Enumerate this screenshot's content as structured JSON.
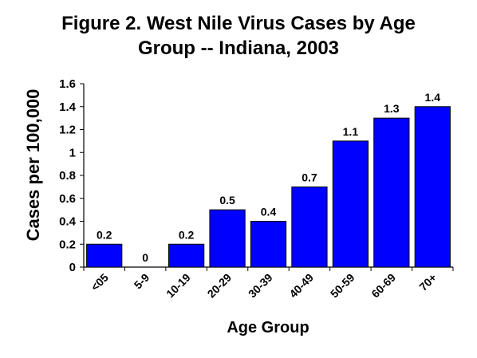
{
  "chart_data": {
    "type": "bar",
    "title_lines": [
      "Figure 2. West Nile Virus Cases by Age",
      "Group -- Indiana, 2003"
    ],
    "xlabel": "Age Group",
    "ylabel": "Cases per 100,000",
    "categories": [
      "<05",
      "5-9",
      "10-19",
      "20-29",
      "30-39",
      "40-49",
      "50-59",
      "60-69",
      "70+"
    ],
    "values": [
      0.2,
      0,
      0.2,
      0.5,
      0.4,
      0.7,
      1.1,
      1.3,
      1.4
    ],
    "value_labels": [
      "0.2",
      "0",
      "0.2",
      "0.5",
      "0.4",
      "0.7",
      "1.1",
      "1.3",
      "1.4"
    ],
    "ylim": [
      0,
      1.6
    ],
    "y_ticks": [
      0,
      0.2,
      0.4,
      0.6,
      0.8,
      1,
      1.2,
      1.4,
      1.6
    ],
    "y_tick_labels": [
      "0",
      "0.2",
      "0.4",
      "0.6",
      "0.8",
      "1",
      "1.2",
      "1.4",
      "1.6"
    ],
    "grid": false,
    "legend": "none",
    "bar_color": "#0000FF",
    "bar_edge_color": "#000000"
  }
}
